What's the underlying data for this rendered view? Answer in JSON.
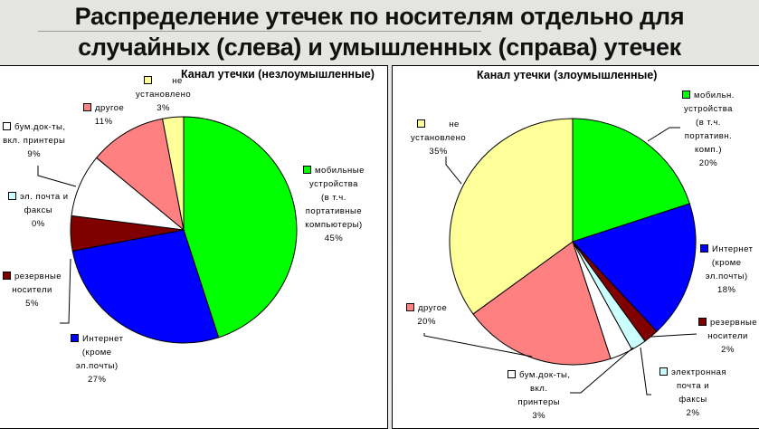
{
  "header": {
    "title_line1": "Распределение утечек по носителям отдельно для",
    "title_line2": "случайных (слева) и умышленных (справа) утечек"
  },
  "colors": {
    "mobile": "#00ff00",
    "internet": "#0000ff",
    "backup": "#800000",
    "email": "#ccffff",
    "paper": "#ffffff",
    "other": "#ff8080",
    "unknown": "#ffff99"
  },
  "chart_data": [
    {
      "type": "pie",
      "title": "Канал утечки (незлоумышленные)",
      "categories": [
        "мобильные устройства (в т.ч. портативные компьютеры)",
        "Интернет (кроме эл.почты)",
        "резервные носители",
        "эл. почта и факсы",
        "бум.док-ты, вкл. принтеры",
        "другое",
        "не установлено"
      ],
      "values": [
        45,
        27,
        5,
        0,
        9,
        11,
        3
      ],
      "legend_position": "data-labels"
    },
    {
      "type": "pie",
      "title": "Канал утечки (злоумышленные)",
      "categories": [
        "мобильн. устройства (в т.ч. портативн. комп.)",
        "Интернет (кроме эл.почты)",
        "резервные носители",
        "электронная почта и факсы",
        "бум.док-ты, вкл. принтеры",
        "другое",
        "не установлено"
      ],
      "values": [
        20,
        18,
        2,
        2,
        3,
        20,
        35
      ],
      "legend_position": "data-labels"
    }
  ],
  "left": {
    "title": "Канал утечки (незлоумышленные)",
    "labels": {
      "unknown": [
        "не",
        "установлено",
        "3%"
      ],
      "other": [
        "другое",
        "11%"
      ],
      "paper": [
        "бум.док-ты,",
        "вкл. принтеры",
        "9%"
      ],
      "email": [
        "эл. почта и",
        "факсы",
        "0%"
      ],
      "backup": [
        "резервные",
        "носители",
        "5%"
      ],
      "internet": [
        "Интернет",
        "(кроме",
        "эл.почты)",
        "27%"
      ],
      "mobile": [
        "мобильные",
        "устройства",
        "(в т.ч.",
        "портативные",
        "компьютеры)",
        "45%"
      ]
    }
  },
  "right": {
    "title": "Канал утечки (злоумышленные)",
    "labels": {
      "unknown": [
        "не",
        "установлено",
        "35%"
      ],
      "mobile": [
        "мобильн.",
        "устройства",
        "(в т.ч.",
        "портативн.",
        "комп.)",
        "20%"
      ],
      "internet": [
        "Интернет",
        "(кроме",
        "эл.почты)",
        "18%"
      ],
      "backup": [
        "резервные",
        "носители",
        "2%"
      ],
      "email": [
        "электронная",
        "почта и",
        "факсы",
        "2%"
      ],
      "paper": [
        "бум.док-ты,",
        "вкл.",
        "принтеры",
        "3%"
      ],
      "other": [
        "другое",
        "20%"
      ]
    }
  }
}
